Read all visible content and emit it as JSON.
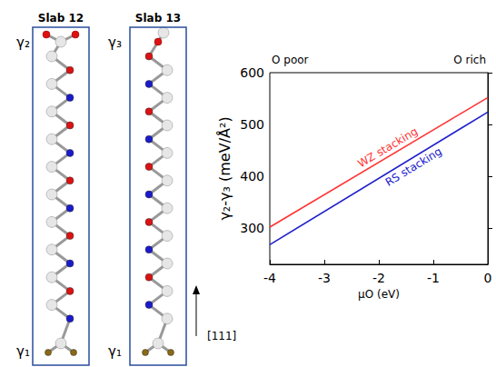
{
  "chart_data": {
    "type": "line",
    "x_label": "μO (eV)",
    "y_label": "γ₂-γ₃ (meV/Å²)",
    "annotations": [
      "O poor",
      "O rich"
    ],
    "x": [
      -4,
      0
    ],
    "xlim": [
      -4,
      0
    ],
    "xticks": [
      -4,
      -3,
      -2,
      -1,
      0
    ],
    "ylim": [
      230,
      600
    ],
    "yticks": [
      300,
      400,
      500,
      600
    ],
    "grid": false,
    "series": [
      {
        "name": "WZ stacking",
        "color": "#ff3333",
        "values": [
          302,
          552
        ]
      },
      {
        "name": "RS stacking",
        "color": "#2020cc",
        "values": [
          268,
          524
        ]
      }
    ]
  },
  "diagram": {
    "slabs": [
      {
        "title": "Slab 12",
        "top_label": "γ₂",
        "bottom_label": "γ₁"
      },
      {
        "title": "Slab 13",
        "top_label": "γ₃",
        "bottom_label": "γ₁"
      }
    ],
    "direction_label": "[111]"
  }
}
